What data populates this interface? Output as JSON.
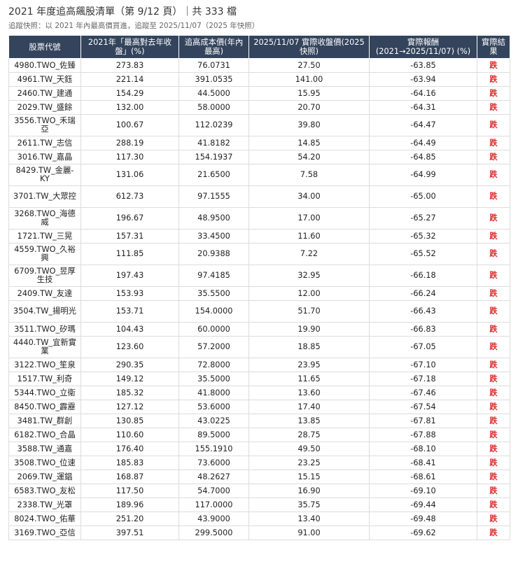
{
  "header": {
    "title": "2021 年度追高飆股清單（第 9/12 頁）｜共 333 檔",
    "subtitle": "追蹤快照：以 2021 年內最高價買進，追蹤至 2025/11/07（2025 年快照）"
  },
  "table": {
    "columns": [
      "股票代號",
      "2021年「最高對去年收盤」(%)",
      "追高成本價(年內最高)",
      "2025/11/07 實際收盤價(2025快照)",
      "實際報酬 (2021→2025/11/07) (%)",
      "實際結果"
    ],
    "rows": [
      {
        "stock": "4980.TWO_佐臻",
        "rise": "273.83",
        "cost": "76.0731",
        "close": "27.50",
        "ret": "-63.85",
        "result": "跌",
        "tall": false
      },
      {
        "stock": "4961.TW_天鈺",
        "rise": "221.14",
        "cost": "391.0535",
        "close": "141.00",
        "ret": "-63.94",
        "result": "跌",
        "tall": false
      },
      {
        "stock": "2460.TW_建通",
        "rise": "154.29",
        "cost": "44.5000",
        "close": "15.95",
        "ret": "-64.16",
        "result": "跌",
        "tall": false
      },
      {
        "stock": "2029.TW_盛餘",
        "rise": "132.00",
        "cost": "58.0000",
        "close": "20.70",
        "ret": "-64.31",
        "result": "跌",
        "tall": false
      },
      {
        "stock": "3556.TWO_禾瑞亞",
        "rise": "100.67",
        "cost": "112.0239",
        "close": "39.80",
        "ret": "-64.47",
        "result": "跌",
        "tall": true
      },
      {
        "stock": "2611.TW_志信",
        "rise": "288.19",
        "cost": "41.8182",
        "close": "14.85",
        "ret": "-64.49",
        "result": "跌",
        "tall": false
      },
      {
        "stock": "3016.TW_嘉晶",
        "rise": "117.30",
        "cost": "154.1937",
        "close": "54.20",
        "ret": "-64.85",
        "result": "跌",
        "tall": false
      },
      {
        "stock": "8429.TW_金麗-KY",
        "rise": "131.06",
        "cost": "21.6500",
        "close": "7.58",
        "ret": "-64.99",
        "result": "跌",
        "tall": true
      },
      {
        "stock": "3701.TW_大眾控",
        "rise": "612.73",
        "cost": "97.1555",
        "close": "34.00",
        "ret": "-65.00",
        "result": "跌",
        "tall": true
      },
      {
        "stock": "3268.TWO_海德威",
        "rise": "196.67",
        "cost": "48.9500",
        "close": "17.00",
        "ret": "-65.27",
        "result": "跌",
        "tall": true
      },
      {
        "stock": "1721.TW_三晃",
        "rise": "157.31",
        "cost": "33.4500",
        "close": "11.60",
        "ret": "-65.32",
        "result": "跌",
        "tall": false
      },
      {
        "stock": "4559.TWO_久裕興",
        "rise": "111.85",
        "cost": "20.9388",
        "close": "7.22",
        "ret": "-65.52",
        "result": "跌",
        "tall": true
      },
      {
        "stock": "6709.TWO_昱厚生技",
        "rise": "197.43",
        "cost": "97.4185",
        "close": "32.95",
        "ret": "-66.18",
        "result": "跌",
        "tall": true
      },
      {
        "stock": "2409.TW_友達",
        "rise": "153.93",
        "cost": "35.5500",
        "close": "12.00",
        "ret": "-66.24",
        "result": "跌",
        "tall": false
      },
      {
        "stock": "3504.TW_揚明光",
        "rise": "153.71",
        "cost": "154.0000",
        "close": "51.70",
        "ret": "-66.43",
        "result": "跌",
        "tall": true
      },
      {
        "stock": "3511.TWO_矽瑪",
        "rise": "104.43",
        "cost": "60.0000",
        "close": "19.90",
        "ret": "-66.83",
        "result": "跌",
        "tall": false
      },
      {
        "stock": "4440.TW_宜新實業",
        "rise": "123.60",
        "cost": "57.2000",
        "close": "18.85",
        "ret": "-67.05",
        "result": "跌",
        "tall": true
      },
      {
        "stock": "3122.TWO_笙泉",
        "rise": "290.35",
        "cost": "72.8000",
        "close": "23.95",
        "ret": "-67.10",
        "result": "跌",
        "tall": false
      },
      {
        "stock": "1517.TW_利奇",
        "rise": "149.12",
        "cost": "35.5000",
        "close": "11.65",
        "ret": "-67.18",
        "result": "跌",
        "tall": false
      },
      {
        "stock": "5344.TWO_立衛",
        "rise": "185.32",
        "cost": "41.8000",
        "close": "13.60",
        "ret": "-67.46",
        "result": "跌",
        "tall": false
      },
      {
        "stock": "8450.TWO_霹靂",
        "rise": "127.12",
        "cost": "53.6000",
        "close": "17.40",
        "ret": "-67.54",
        "result": "跌",
        "tall": false
      },
      {
        "stock": "3481.TW_群創",
        "rise": "130.85",
        "cost": "43.0225",
        "close": "13.85",
        "ret": "-67.81",
        "result": "跌",
        "tall": false
      },
      {
        "stock": "6182.TWO_合晶",
        "rise": "110.60",
        "cost": "89.5000",
        "close": "28.75",
        "ret": "-67.88",
        "result": "跌",
        "tall": false
      },
      {
        "stock": "3588.TW_通嘉",
        "rise": "176.40",
        "cost": "155.1910",
        "close": "49.50",
        "ret": "-68.10",
        "result": "跌",
        "tall": false
      },
      {
        "stock": "3508.TWO_位速",
        "rise": "185.83",
        "cost": "73.6000",
        "close": "23.25",
        "ret": "-68.41",
        "result": "跌",
        "tall": false
      },
      {
        "stock": "2069.TW_運錩",
        "rise": "168.87",
        "cost": "48.2627",
        "close": "15.15",
        "ret": "-68.61",
        "result": "跌",
        "tall": false
      },
      {
        "stock": "6583.TWO_友松",
        "rise": "117.50",
        "cost": "54.7000",
        "close": "16.90",
        "ret": "-69.10",
        "result": "跌",
        "tall": false
      },
      {
        "stock": "2338.TW_光罩",
        "rise": "189.96",
        "cost": "117.0000",
        "close": "35.75",
        "ret": "-69.44",
        "result": "跌",
        "tall": false
      },
      {
        "stock": "8024.TWO_佑華",
        "rise": "251.20",
        "cost": "43.9000",
        "close": "13.40",
        "ret": "-69.48",
        "result": "跌",
        "tall": false
      },
      {
        "stock": "3169.TWO_亞信",
        "rise": "397.51",
        "cost": "299.5000",
        "close": "91.00",
        "ret": "-69.62",
        "result": "跌",
        "tall": false
      }
    ]
  }
}
